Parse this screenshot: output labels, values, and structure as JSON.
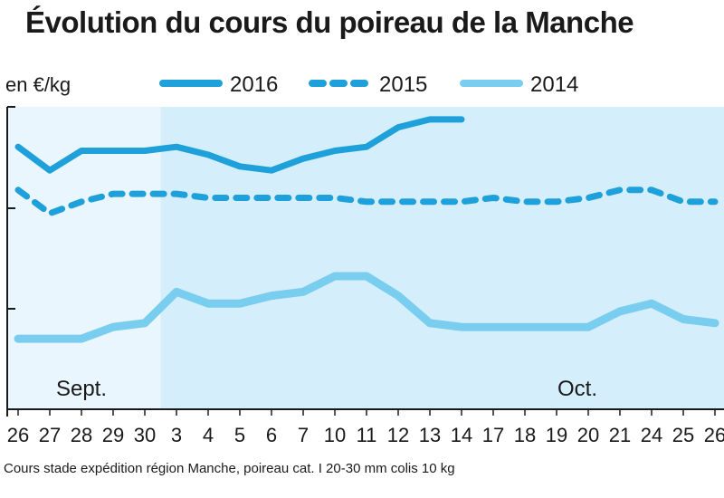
{
  "chart_data": {
    "type": "line",
    "title": "Évolution du cours du poireau de la Manche",
    "ylabel": "en €/kg",
    "source_note": "Cours stade expédition région Manche, poireau cat. I 20-30 mm colis 10 kg",
    "categories": [
      "26",
      "27",
      "28",
      "29",
      "30",
      "3",
      "4",
      "5",
      "6",
      "7",
      "10",
      "11",
      "12",
      "13",
      "14",
      "17",
      "18",
      "19",
      "20",
      "21",
      "24",
      "25",
      "26"
    ],
    "month_labels": [
      "Sept.",
      "Oct."
    ],
    "series": [
      {
        "name": "2016",
        "style": "solid",
        "color": "#1ea0da",
        "values": [
          1.52,
          1.46,
          1.51,
          1.51,
          1.51,
          1.52,
          1.5,
          1.47,
          1.46,
          1.49,
          1.51,
          1.52,
          1.57,
          1.59,
          1.59,
          null,
          null,
          null,
          null,
          null,
          null,
          null,
          null
        ]
      },
      {
        "name": "2015",
        "style": "dashed",
        "color": "#1ea0da",
        "values": [
          1.41,
          1.35,
          1.38,
          1.4,
          1.4,
          1.4,
          1.39,
          1.39,
          1.39,
          1.39,
          1.39,
          1.38,
          1.38,
          1.38,
          1.38,
          1.39,
          1.38,
          1.38,
          1.39,
          1.41,
          1.41,
          1.38,
          1.38
        ]
      },
      {
        "name": "2014",
        "style": "solid",
        "color": "#79cdee",
        "values": [
          1.03,
          1.03,
          1.03,
          1.06,
          1.07,
          1.15,
          1.12,
          1.12,
          1.14,
          1.15,
          1.19,
          1.19,
          1.14,
          1.07,
          1.06,
          1.06,
          1.06,
          1.06,
          1.06,
          1.1,
          1.12,
          1.08,
          1.07
        ]
      }
    ],
    "ylim": [
      0.9,
      1.6
    ],
    "yticks_count": 3,
    "grid": false,
    "legend_position": "top",
    "colors": {
      "background_light": "#eaf6fd",
      "background_shaded": "#d5eefb",
      "axis": "#1a1a1a"
    }
  }
}
